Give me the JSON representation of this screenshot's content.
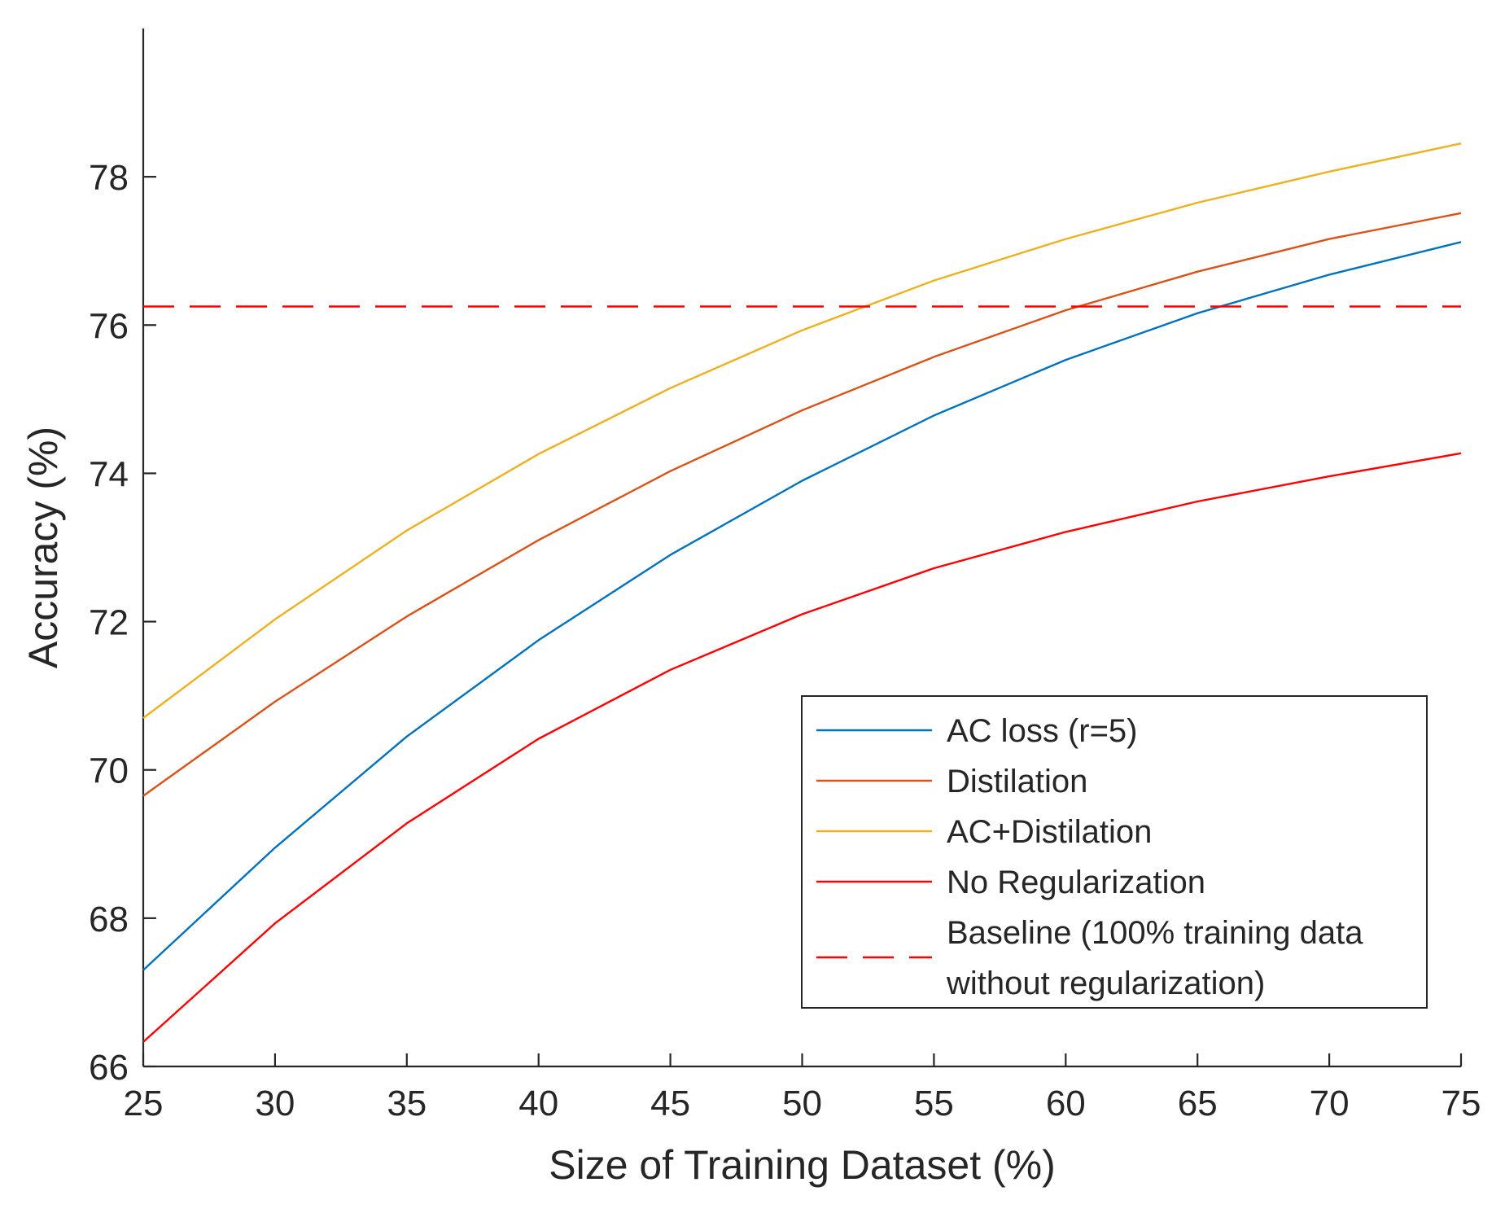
{
  "chart_data": {
    "type": "line",
    "title": "",
    "xlabel": "Size of Training Dataset (%)",
    "ylabel": "Accuracy (%)",
    "xlim": [
      25,
      75
    ],
    "ylim": [
      66,
      80
    ],
    "x": [
      25,
      30,
      35,
      40,
      45,
      50,
      55,
      60,
      65,
      70,
      75
    ],
    "xticks": [
      25,
      30,
      35,
      40,
      45,
      50,
      55,
      60,
      65,
      70,
      75
    ],
    "yticks": [
      66,
      68,
      70,
      72,
      74,
      76,
      78
    ],
    "grid": false,
    "legend_position": "bottom-right",
    "series": [
      {
        "name": "AC loss (r=5)",
        "color": "#0072BD",
        "style": "solid",
        "values": [
          67.3,
          68.95,
          70.45,
          71.75,
          72.9,
          73.9,
          74.78,
          75.53,
          76.16,
          76.68,
          77.12
        ]
      },
      {
        "name": "Distilation",
        "color": "#D95319",
        "style": "solid",
        "values": [
          69.65,
          70.92,
          72.07,
          73.1,
          74.03,
          74.85,
          75.57,
          76.2,
          76.72,
          77.16,
          77.51
        ]
      },
      {
        "name": "AC+Distilation",
        "color": "#EDB120",
        "style": "solid",
        "values": [
          70.7,
          72.03,
          73.23,
          74.26,
          75.15,
          75.93,
          76.6,
          77.16,
          77.65,
          78.07,
          78.45
        ]
      },
      {
        "name": "No Regularization",
        "color": "#FF0000",
        "style": "solid",
        "values": [
          66.33,
          67.93,
          69.28,
          70.42,
          71.35,
          72.1,
          72.72,
          73.21,
          73.62,
          73.96,
          74.27
        ]
      },
      {
        "name": "Baseline (100% training data\nwithout regularization)",
        "color": "#FF0000",
        "style": "dashed",
        "values": [
          76.25,
          76.25,
          76.25,
          76.25,
          76.25,
          76.25,
          76.25,
          76.25,
          76.25,
          76.25,
          76.25
        ]
      }
    ]
  }
}
